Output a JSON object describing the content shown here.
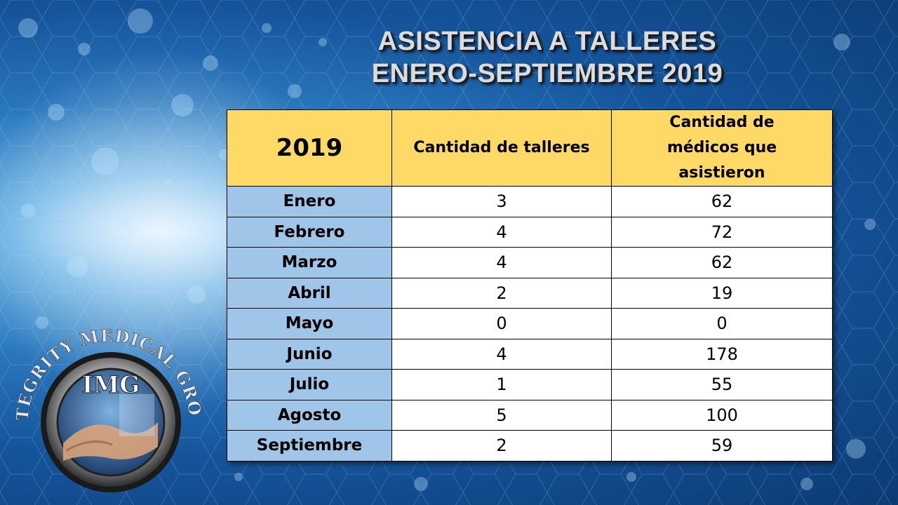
{
  "title": {
    "line1": "ASISTENCIA A TALLERES",
    "line2": "ENERO-SEPTIEMBRE 2019"
  },
  "table": {
    "headers": [
      "2019",
      "Cantidad de talleres",
      "Cantidad de médicos que asistieron"
    ],
    "rows": [
      {
        "month": "Enero",
        "talleres": "3",
        "medicos": "62"
      },
      {
        "month": "Febrero",
        "talleres": "4",
        "medicos": "72"
      },
      {
        "month": "Marzo",
        "talleres": "4",
        "medicos": "62"
      },
      {
        "month": "Abril",
        "talleres": "2",
        "medicos": "19"
      },
      {
        "month": "Mayo",
        "talleres": "0",
        "medicos": "0"
      },
      {
        "month": "Junio",
        "talleres": "4",
        "medicos": "178"
      },
      {
        "month": "Julio",
        "talleres": "1",
        "medicos": "55"
      },
      {
        "month": "Agosto",
        "talleres": "5",
        "medicos": "100"
      },
      {
        "month": "Septiembre",
        "talleres": "2",
        "medicos": "59"
      }
    ]
  },
  "logo": {
    "arc_text": "INTEGRITY MEDICAL GROUP",
    "initials": "IMG"
  },
  "colors": {
    "header_fill": "#ffd966",
    "month_fill": "#9fc5e8",
    "background": "#15549a"
  }
}
